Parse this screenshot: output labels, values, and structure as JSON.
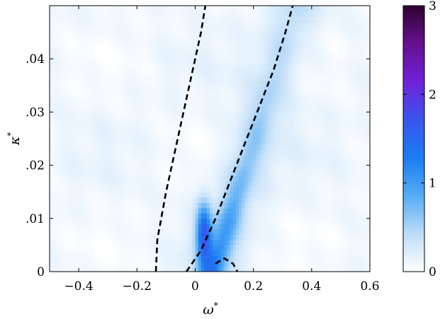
{
  "chart_data": {
    "type": "heatmap",
    "title": "",
    "xlabel": "ω",
    "xlabel_sup": "*",
    "ylabel": "κ",
    "ylabel_sup": "*",
    "xlim": [
      -0.5,
      0.6
    ],
    "ylim": [
      0,
      0.05
    ],
    "x_ticks": [
      {
        "value": -0.4,
        "label": "−0.4"
      },
      {
        "value": -0.2,
        "label": "−0.2"
      },
      {
        "value": 0,
        "label": "0"
      },
      {
        "value": 0.2,
        "label": "0.2"
      },
      {
        "value": 0.4,
        "label": "0.4"
      },
      {
        "value": 0.6,
        "label": "0.6"
      }
    ],
    "y_ticks": [
      {
        "value": 0,
        "label": "0"
      },
      {
        "value": 0.01,
        "label": ".01"
      },
      {
        "value": 0.02,
        "label": ".02"
      },
      {
        "value": 0.03,
        "label": ".03"
      },
      {
        "value": 0.04,
        "label": ".04"
      }
    ],
    "colorbar": {
      "range": [
        0,
        3
      ],
      "ticks": [
        {
          "value": 0,
          "label": "0"
        },
        {
          "value": 1,
          "label": "1"
        },
        {
          "value": 2,
          "label": "2"
        },
        {
          "value": 3,
          "label": "3"
        }
      ],
      "colors": [
        "#ffffff",
        "#bcdcf7",
        "#55acf5",
        "#1a7cf2",
        "#3a55ee",
        "#7022d8",
        "#65108f",
        "#2e0430"
      ]
    },
    "ridge": {
      "peak_x": 0.03,
      "peak_y": 0.007,
      "peak_value": 2.2,
      "y_at_0": -0.01,
      "slope": 0.172
    },
    "curves": [
      {
        "style": "dashed",
        "points": [
          [
            -0.135,
            0.0
          ],
          [
            -0.13,
            0.006
          ],
          [
            -0.1,
            0.015
          ],
          [
            -0.06,
            0.025
          ],
          [
            -0.02,
            0.035
          ],
          [
            0.02,
            0.045
          ],
          [
            0.035,
            0.05
          ]
        ]
      },
      {
        "style": "dashed",
        "points": [
          [
            -0.03,
            0.0
          ],
          [
            0.02,
            0.004
          ],
          [
            0.07,
            0.01
          ],
          [
            0.12,
            0.017
          ],
          [
            0.17,
            0.024
          ],
          [
            0.22,
            0.031
          ],
          [
            0.27,
            0.038
          ],
          [
            0.31,
            0.045
          ],
          [
            0.335,
            0.05
          ]
        ]
      },
      {
        "style": "dashed",
        "points": [
          [
            0.07,
            0.0015
          ],
          [
            0.1,
            0.0025
          ],
          [
            0.13,
            0.0015
          ],
          [
            0.145,
            0.0
          ]
        ]
      }
    ]
  }
}
